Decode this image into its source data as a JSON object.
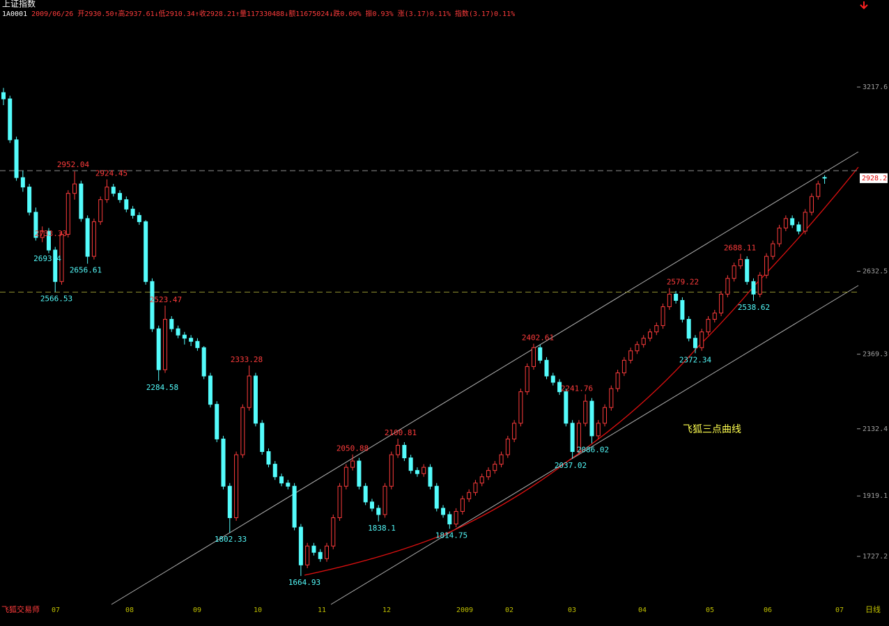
{
  "header": {
    "name": "上证指数",
    "items": [
      {
        "text": "1A0001",
        "color": "#ffffff"
      },
      {
        "text": "2009/06/26",
        "color": "#ff3c3c"
      },
      {
        "text": "开2930.50↑高2937.61↓低2910.34↑收2928.21↑量117330488↓额11675024↓跌0.00% 振0.93% 涨(3.17)0.11% 指数(3.17)0.11%",
        "color": "#ff3c3c"
      }
    ]
  },
  "chart_data": {
    "type": "candlestick",
    "up_color": "#ff3c3c",
    "down_color": "#54fcfc",
    "ylim": [
      1581.3,
      3427.7
    ],
    "yticks": [
      3217.6,
      2632.5,
      2369.3,
      2132.4,
      1919.1,
      1727.2
    ],
    "x_labels": [
      "07",
      "08",
      "09",
      "10",
      "11",
      "12",
      "2009",
      "02",
      "03",
      "04",
      "05",
      "06",
      "07"
    ],
    "period": "日线",
    "software": "飞狐交易师",
    "curve_name": "飞狐三点曲线",
    "last_price": 2928.2,
    "ref_lines": [
      {
        "value": 2952.04,
        "color": "#909090"
      },
      {
        "value": 2566.53,
        "color": "#909030"
      }
    ],
    "high_labels": [
      2952.04,
      2924.45,
      2733.33,
      2523.47,
      2333.28,
      2050.88,
      2100.81,
      2402.61,
      2241.76,
      2579.22,
      2688.11
    ],
    "low_labels": [
      2693.4,
      2656.61,
      2566.53,
      2284.58,
      1802.33,
      1664.93,
      1838.1,
      1814.75,
      2037.02,
      2086.02,
      2372.34,
      2538.62
    ],
    "candles": [
      [
        3200,
        3215,
        3160,
        3180
      ],
      [
        3180,
        3190,
        3040,
        3050
      ],
      [
        3050,
        3060,
        2920,
        2930
      ],
      [
        2930,
        2952.04,
        2885,
        2900
      ],
      [
        2900,
        2910,
        2810,
        2820
      ],
      [
        2820,
        2835,
        2730,
        2740
      ],
      [
        2740,
        2775,
        2725,
        2760
      ],
      [
        2760,
        2770,
        2690,
        2700
      ],
      [
        2700,
        2710,
        2566.53,
        2600
      ],
      [
        2600,
        2760,
        2590,
        2750
      ],
      [
        2750,
        2890,
        2740,
        2880
      ],
      [
        2880,
        2950,
        2860,
        2910
      ],
      [
        2910,
        2920,
        2790,
        2800
      ],
      [
        2800,
        2810,
        2656.61,
        2680
      ],
      [
        2680,
        2800,
        2670,
        2790
      ],
      [
        2790,
        2870,
        2780,
        2860
      ],
      [
        2860,
        2924.45,
        2850,
        2900
      ],
      [
        2900,
        2910,
        2870,
        2880
      ],
      [
        2880,
        2890,
        2850,
        2860
      ],
      [
        2860,
        2870,
        2820,
        2830
      ],
      [
        2830,
        2840,
        2800,
        2810
      ],
      [
        2810,
        2820,
        2780,
        2790
      ],
      [
        2790,
        2795,
        2590,
        2600
      ],
      [
        2600,
        2610,
        2440,
        2450
      ],
      [
        2450,
        2460,
        2284.58,
        2320
      ],
      [
        2320,
        2523.47,
        2310,
        2480
      ],
      [
        2480,
        2490,
        2440,
        2450
      ],
      [
        2450,
        2460,
        2420,
        2430
      ],
      [
        2430,
        2440,
        2400,
        2420
      ],
      [
        2420,
        2430,
        2395,
        2410
      ],
      [
        2410,
        2420,
        2380,
        2390
      ],
      [
        2390,
        2395,
        2290,
        2300
      ],
      [
        2300,
        2310,
        2200,
        2210
      ],
      [
        2210,
        2220,
        2090,
        2100
      ],
      [
        2100,
        2110,
        1940,
        1950
      ],
      [
        1950,
        1960,
        1802.33,
        1850
      ],
      [
        1850,
        2060,
        1840,
        2050
      ],
      [
        2050,
        2210,
        2040,
        2200
      ],
      [
        2200,
        2333.28,
        2190,
        2300
      ],
      [
        2300,
        2310,
        2140,
        2150
      ],
      [
        2150,
        2160,
        2050,
        2060
      ],
      [
        2060,
        2070,
        2010,
        2020
      ],
      [
        2020,
        2030,
        1970,
        1980
      ],
      [
        1980,
        1990,
        1950,
        1960
      ],
      [
        1960,
        1970,
        1940,
        1950
      ],
      [
        1950,
        1960,
        1810,
        1820
      ],
      [
        1820,
        1830,
        1664.93,
        1700
      ],
      [
        1700,
        1770,
        1690,
        1760
      ],
      [
        1760,
        1770,
        1730,
        1740
      ],
      [
        1740,
        1750,
        1710,
        1720
      ],
      [
        1720,
        1770,
        1710,
        1760
      ],
      [
        1760,
        1860,
        1750,
        1850
      ],
      [
        1850,
        1960,
        1840,
        1950
      ],
      [
        1950,
        2020,
        1940,
        2010
      ],
      [
        2010,
        2050.88,
        2000,
        2030
      ],
      [
        2030,
        2040,
        1940,
        1950
      ],
      [
        1950,
        1960,
        1890,
        1900
      ],
      [
        1900,
        1910,
        1870,
        1880
      ],
      [
        1880,
        1890,
        1838.1,
        1860
      ],
      [
        1860,
        1960,
        1850,
        1950
      ],
      [
        1950,
        2060,
        1940,
        2050
      ],
      [
        2050,
        2100.81,
        2040,
        2080
      ],
      [
        2080,
        2090,
        2030,
        2040
      ],
      [
        2040,
        2050,
        1990,
        2000
      ],
      [
        2000,
        2010,
        1980,
        1990
      ],
      [
        1990,
        2020,
        1980,
        2010
      ],
      [
        2010,
        2020,
        1940,
        1950
      ],
      [
        1950,
        1960,
        1870,
        1880
      ],
      [
        1880,
        1890,
        1850,
        1860
      ],
      [
        1860,
        1870,
        1814.75,
        1830
      ],
      [
        1830,
        1880,
        1820,
        1870
      ],
      [
        1870,
        1920,
        1860,
        1910
      ],
      [
        1910,
        1940,
        1900,
        1930
      ],
      [
        1930,
        1970,
        1920,
        1960
      ],
      [
        1960,
        1990,
        1950,
        1980
      ],
      [
        1980,
        2010,
        1970,
        2000
      ],
      [
        2000,
        2030,
        1990,
        2020
      ],
      [
        2020,
        2060,
        2010,
        2050
      ],
      [
        2050,
        2110,
        2040,
        2100
      ],
      [
        2100,
        2160,
        2090,
        2150
      ],
      [
        2150,
        2260,
        2140,
        2250
      ],
      [
        2250,
        2340,
        2240,
        2330
      ],
      [
        2330,
        2402.61,
        2320,
        2390
      ],
      [
        2390,
        2400,
        2340,
        2350
      ],
      [
        2350,
        2360,
        2290,
        2300
      ],
      [
        2300,
        2310,
        2270,
        2280
      ],
      [
        2280,
        2290,
        2240,
        2250
      ],
      [
        2250,
        2260,
        2140,
        2150
      ],
      [
        2150,
        2160,
        2037.02,
        2060
      ],
      [
        2060,
        2160,
        2050,
        2150
      ],
      [
        2150,
        2241.76,
        2140,
        2220
      ],
      [
        2220,
        2230,
        2086.02,
        2110
      ],
      [
        2110,
        2160,
        2100,
        2150
      ],
      [
        2150,
        2210,
        2140,
        2200
      ],
      [
        2200,
        2270,
        2190,
        2260
      ],
      [
        2260,
        2320,
        2250,
        2310
      ],
      [
        2310,
        2360,
        2300,
        2350
      ],
      [
        2350,
        2390,
        2340,
        2380
      ],
      [
        2380,
        2410,
        2370,
        2400
      ],
      [
        2400,
        2430,
        2390,
        2420
      ],
      [
        2420,
        2450,
        2410,
        2440
      ],
      [
        2440,
        2470,
        2430,
        2460
      ],
      [
        2460,
        2530,
        2450,
        2520
      ],
      [
        2520,
        2579.22,
        2510,
        2560
      ],
      [
        2560,
        2570,
        2530,
        2540
      ],
      [
        2540,
        2550,
        2470,
        2480
      ],
      [
        2480,
        2490,
        2410,
        2420
      ],
      [
        2420,
        2430,
        2372.34,
        2390
      ],
      [
        2390,
        2450,
        2380,
        2440
      ],
      [
        2440,
        2490,
        2430,
        2480
      ],
      [
        2480,
        2510,
        2470,
        2500
      ],
      [
        2500,
        2570,
        2490,
        2560
      ],
      [
        2560,
        2620,
        2550,
        2610
      ],
      [
        2610,
        2660,
        2600,
        2650
      ],
      [
        2650,
        2688.11,
        2640,
        2670
      ],
      [
        2670,
        2680,
        2590,
        2600
      ],
      [
        2600,
        2610,
        2538.62,
        2560
      ],
      [
        2560,
        2630,
        2550,
        2620
      ],
      [
        2620,
        2690,
        2610,
        2680
      ],
      [
        2680,
        2730,
        2670,
        2720
      ],
      [
        2720,
        2780,
        2710,
        2770
      ],
      [
        2770,
        2810,
        2760,
        2800
      ],
      [
        2800,
        2810,
        2770,
        2780
      ],
      [
        2780,
        2790,
        2750,
        2760
      ],
      [
        2760,
        2830,
        2750,
        2820
      ],
      [
        2820,
        2880,
        2810,
        2870
      ],
      [
        2870,
        2920,
        2860,
        2910
      ],
      [
        2930.5,
        2937.61,
        2910.34,
        2928.21
      ]
    ]
  }
}
